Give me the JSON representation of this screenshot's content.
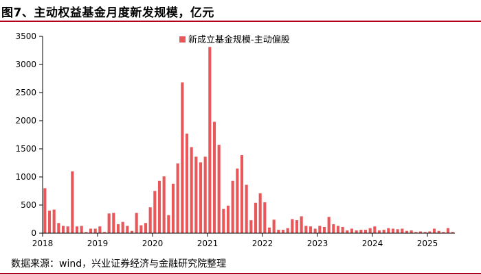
{
  "title": "图7、主动权益基金月度新发规模，亿元",
  "source": "数据来源：wind，兴业证券经济与金融研究院整理",
  "chart_data": {
    "type": "bar",
    "xlabel": "",
    "ylabel": "",
    "ylim": [
      0,
      3500
    ],
    "yticks": [
      "0",
      "500",
      "1000",
      "1500",
      "2000",
      "2500",
      "3000",
      "3500"
    ],
    "xticks": [
      "2018",
      "2019",
      "2020",
      "2021",
      "2022",
      "2023",
      "2024",
      "2025"
    ],
    "grid": false,
    "legend_position": "top-center",
    "bar_color": "#e8575a",
    "series": [
      {
        "name": "新成立基金规模-主动偏股",
        "values": [
          800,
          400,
          420,
          180,
          130,
          120,
          1100,
          120,
          130,
          20,
          80,
          80,
          120,
          20,
          350,
          360,
          160,
          200,
          130,
          40,
          360,
          140,
          180,
          460,
          750,
          930,
          1010,
          320,
          880,
          1240,
          2680,
          1770,
          1530,
          1360,
          1260,
          1360,
          3310,
          1980,
          1570,
          430,
          490,
          930,
          1150,
          1390,
          860,
          230,
          540,
          710,
          550,
          100,
          240,
          60,
          60,
          90,
          250,
          230,
          300,
          130,
          120,
          80,
          130,
          110,
          290,
          160,
          130,
          110,
          50,
          80,
          50,
          60,
          60,
          90,
          120,
          50,
          60,
          90,
          80,
          70,
          80,
          40,
          50,
          20,
          30,
          20,
          30,
          80,
          40,
          20,
          90,
          20
        ]
      }
    ]
  }
}
